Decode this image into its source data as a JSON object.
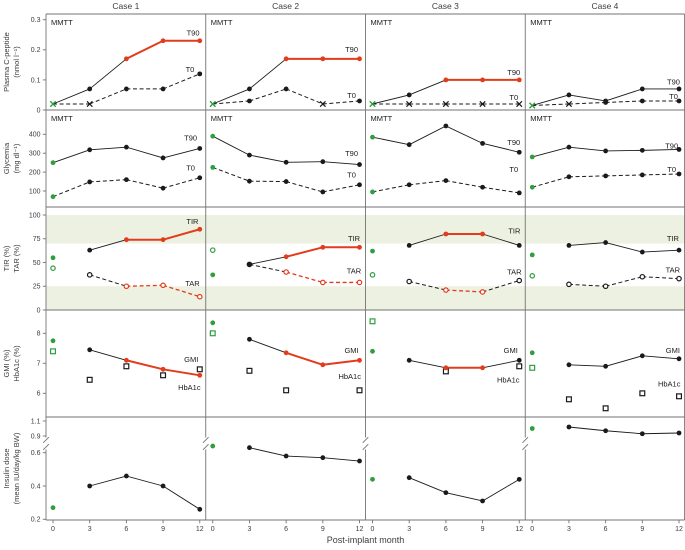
{
  "figure": {
    "column_titles": [
      "Case 1",
      "Case 2",
      "Case 3",
      "Case 4"
    ],
    "xlabel": "Post-implant month",
    "x_months": [
      0,
      3,
      6,
      9,
      12
    ],
    "x_tick_labels": [
      "0",
      "3",
      "6",
      "9",
      "12"
    ],
    "colors": {
      "red": "#e23c1c",
      "green": "#2f9e3e",
      "black": "#1a1a1a",
      "band": "#edf1e1",
      "border": "#737373",
      "text": "#3d3d3d"
    }
  },
  "chart_data": [
    {
      "type": "line",
      "key": "plasma-c-peptide",
      "ylabel": [
        "Plasma C-peptide",
        "(nmol l⁻¹)"
      ],
      "panel_label": "MMTT",
      "yticks": [
        [
          0,
          "0"
        ],
        [
          0.1,
          "0.1"
        ],
        [
          0.2,
          "0.2"
        ],
        [
          0.3,
          "0.3"
        ]
      ],
      "ylim": [
        0,
        0.319
      ],
      "connect_baseline": true,
      "panels": [
        {
          "series": [
            {
              "name": "T90",
              "marker": "circle",
              "dashed": false,
              "baseline_marker": "x",
              "values": [
                0.02,
                0.07,
                0.17,
                0.23,
                0.23
              ],
              "red_idx": [
                2,
                3,
                4
              ],
              "label_pos": [
                11.45,
                0.255
              ]
            },
            {
              "name": "T0",
              "marker": "circle",
              "dashed": true,
              "baseline_marker": "x",
              "values": [
                0.02,
                0.02,
                0.07,
                0.07,
                0.12
              ],
              "x_idx": [
                1
              ],
              "label_pos": [
                11.2,
                0.135
              ]
            }
          ]
        },
        {
          "series": [
            {
              "name": "T90",
              "marker": "circle",
              "dashed": false,
              "baseline_marker": "x",
              "values": [
                0.02,
                0.07,
                0.17,
                0.17,
                0.17
              ],
              "red_idx": [
                2,
                3,
                4
              ],
              "label_pos": [
                11.35,
                0.2
              ]
            },
            {
              "name": "T0",
              "marker": "circle",
              "dashed": true,
              "baseline_marker": "x",
              "values": [
                0.02,
                0.03,
                0.07,
                0.02,
                0.03
              ],
              "x_idx": [
                3
              ],
              "label_pos": [
                11.35,
                0.048
              ]
            }
          ]
        },
        {
          "series": [
            {
              "name": "T90",
              "marker": "circle",
              "dashed": false,
              "baseline_marker": "x",
              "values": [
                0.02,
                0.05,
                0.1,
                0.1,
                0.1
              ],
              "red_idx": [
                2,
                3,
                4
              ],
              "label_pos": [
                11.55,
                0.125
              ]
            },
            {
              "name": "T0",
              "marker": "circle",
              "dashed": true,
              "baseline_marker": "x",
              "values": [
                0.02,
                0.02,
                0.02,
                0.02,
                0.02
              ],
              "x_idx": [
                1,
                2,
                3,
                4
              ],
              "label_pos": [
                11.55,
                0.042
              ]
            }
          ]
        },
        {
          "series": [
            {
              "name": "T90",
              "marker": "circle",
              "dashed": false,
              "baseline_marker": "x",
              "values": [
                0.015,
                0.05,
                0.03,
                0.07,
                0.07
              ],
              "label_pos": [
                11.55,
                0.093
              ]
            },
            {
              "name": "T0",
              "marker": "circle",
              "dashed": true,
              "baseline_marker": "x",
              "values": [
                0.015,
                0.02,
                0.025,
                0.03,
                0.03
              ],
              "x_idx": [
                1
              ],
              "label_pos": [
                11.55,
                0.044
              ]
            }
          ]
        }
      ]
    },
    {
      "type": "line",
      "key": "glycemia",
      "ylabel": [
        "Glycemia",
        "(mg dl⁻¹)"
      ],
      "panel_label": "MMTT",
      "yticks": [
        [
          100,
          "100"
        ],
        [
          200,
          "200"
        ],
        [
          300,
          "300"
        ],
        [
          400,
          "400"
        ]
      ],
      "ylim": [
        15,
        529
      ],
      "connect_baseline": true,
      "panels": [
        {
          "series": [
            {
              "name": "T90",
              "marker": "circle",
              "dashed": false,
              "values": [
                250,
                318,
                332,
                275,
                325
              ],
              "label_pos": [
                11.25,
                379
              ]
            },
            {
              "name": "T0",
              "marker": "circle",
              "dashed": true,
              "values": [
                70,
                148,
                160,
                115,
                170
              ],
              "label_pos": [
                11.25,
                220
              ]
            }
          ]
        },
        {
          "series": [
            {
              "name": "T90",
              "marker": "circle",
              "dashed": false,
              "values": [
                390,
                290,
                252,
                255,
                240
              ],
              "label_pos": [
                11.35,
                299
              ]
            },
            {
              "name": "T0",
              "marker": "circle",
              "dashed": true,
              "values": [
                225,
                152,
                150,
                95,
                133
              ],
              "label_pos": [
                11.35,
                185
              ]
            }
          ]
        },
        {
          "series": [
            {
              "name": "T90",
              "marker": "circle",
              "dashed": false,
              "values": [
                385,
                345,
                444,
                352,
                305
              ],
              "label_pos": [
                11.55,
                356
              ]
            },
            {
              "name": "T0",
              "marker": "circle",
              "dashed": true,
              "values": [
                95,
                133,
                155,
                120,
                90
              ],
              "label_pos": [
                11.55,
                213
              ]
            }
          ]
        },
        {
          "series": [
            {
              "name": "T90",
              "marker": "circle",
              "dashed": false,
              "values": [
                280,
                332,
                312,
                315,
                320
              ],
              "label_pos": [
                11.4,
                338
              ]
            },
            {
              "name": "T0",
              "marker": "circle",
              "dashed": true,
              "values": [
                120,
                175,
                180,
                185,
                190
              ],
              "label_pos": [
                11.4,
                212
              ]
            }
          ]
        }
      ]
    },
    {
      "type": "line",
      "key": "tir-tar",
      "ylabel": [
        "TIR (%)",
        "TAR (%)"
      ],
      "panel_label": null,
      "yticks": [
        [
          0,
          "0"
        ],
        [
          25,
          "25"
        ],
        [
          50,
          "50"
        ],
        [
          75,
          "75"
        ],
        [
          100,
          "100"
        ]
      ],
      "ylim": [
        0,
        108
      ],
      "bands": [
        [
          70,
          100
        ],
        [
          0,
          25
        ]
      ],
      "connect_baseline": false,
      "panels": [
        {
          "series": [
            {
              "name": "TIR",
              "marker": "circle",
              "dashed": false,
              "values": [
                55,
                63,
                74,
                74,
                85
              ],
              "red_idx": [
                2,
                3,
                4
              ],
              "label_pos": [
                11.4,
                93
              ]
            },
            {
              "name": "TAR",
              "marker": "open-circle",
              "dashed": true,
              "values": [
                44,
                37,
                25,
                26,
                14
              ],
              "red_idx": [
                2,
                3,
                4
              ],
              "label_pos": [
                11.4,
                28
              ]
            }
          ]
        },
        {
          "series": [
            {
              "name": "TIR",
              "marker": "circle",
              "dashed": false,
              "values": [
                37,
                48,
                56,
                66,
                66
              ],
              "red_idx": [
                2,
                3,
                4
              ],
              "label_pos": [
                11.55,
                75
              ]
            },
            {
              "name": "TAR",
              "marker": "open-circle",
              "dashed": true,
              "values": [
                63,
                48,
                40,
                29,
                29
              ],
              "red_idx": [
                2,
                3,
                4
              ],
              "label_pos": [
                11.55,
                41
              ]
            }
          ]
        },
        {
          "series": [
            {
              "name": "TIR",
              "marker": "circle",
              "dashed": false,
              "values": [
                62,
                68,
                80,
                80,
                68
              ],
              "red_idx": [
                2,
                3
              ],
              "label_pos": [
                11.6,
                83
              ]
            },
            {
              "name": "TAR",
              "marker": "open-circle",
              "dashed": true,
              "values": [
                37,
                30,
                21,
                19,
                31
              ],
              "red_idx": [
                2,
                3
              ],
              "label_pos": [
                11.6,
                40
              ]
            }
          ]
        },
        {
          "series": [
            {
              "name": "TIR",
              "marker": "circle",
              "dashed": false,
              "values": [
                58,
                68,
                71,
                61,
                63
              ],
              "label_pos": [
                11.5,
                75
              ]
            },
            {
              "name": "TAR",
              "marker": "open-circle",
              "dashed": true,
              "values": [
                36,
                27,
                25,
                35,
                33
              ],
              "label_pos": [
                11.5,
                42
              ]
            }
          ]
        }
      ]
    },
    {
      "type": "line",
      "key": "gmi-hba1c",
      "ylabel": [
        "GMI (%)",
        "HbA1c (%)"
      ],
      "panel_label": null,
      "yticks": [
        [
          6,
          "6"
        ],
        [
          7,
          "7"
        ],
        [
          8,
          "8"
        ]
      ],
      "ylim": [
        5.2,
        8.8
      ],
      "connect_baseline": false,
      "panels": [
        {
          "series": [
            {
              "name": "GMI",
              "marker": "circle",
              "dashed": false,
              "values": [
                7.75,
                7.45,
                7.1,
                6.8,
                6.6
              ],
              "red_idx": [
                2,
                3,
                4
              ],
              "label_pos": [
                11.3,
                7.13
              ]
            },
            {
              "name": "HbA1c",
              "marker": "open-square",
              "no_line": true,
              "values": [
                7.4,
                6.45,
                6.9,
                6.6,
                6.8
              ],
              "label_pos": [
                11.15,
                6.19
              ]
            }
          ]
        },
        {
          "series": [
            {
              "name": "GMI",
              "marker": "circle",
              "dashed": false,
              "values": [
                8.35,
                7.8,
                7.35,
                6.95,
                7.1
              ],
              "red_idx": [
                2,
                3,
                4
              ],
              "label_pos": [
                11.35,
                7.42
              ]
            },
            {
              "name": "HbA1c",
              "marker": "open-square",
              "no_line": true,
              "values": [
                8.0,
                6.75,
                6.1,
                null,
                6.1
              ],
              "label_pos": [
                11.2,
                6.55
              ]
            }
          ]
        },
        {
          "series": [
            {
              "name": "GMI",
              "marker": "circle",
              "dashed": false,
              "values": [
                7.4,
                7.1,
                6.85,
                6.85,
                7.1
              ],
              "red_idx": [
                2,
                3
              ],
              "label_pos": [
                11.3,
                7.42
              ]
            },
            {
              "name": "HbA1c",
              "marker": "open-square",
              "no_line": true,
              "values": [
                8.4,
                null,
                6.73,
                null,
                6.9
              ],
              "label_pos": [
                11.1,
                6.44
              ]
            }
          ]
        },
        {
          "series": [
            {
              "name": "GMI",
              "marker": "circle",
              "dashed": false,
              "values": [
                7.35,
                6.95,
                6.9,
                7.25,
                7.15
              ],
              "label_pos": [
                11.5,
                7.42
              ]
            },
            {
              "name": "HbA1c",
              "marker": "open-square",
              "no_line": true,
              "values": [
                6.85,
                5.8,
                5.5,
                6.0,
                5.9
              ],
              "label_pos": [
                11.2,
                6.31
              ]
            }
          ]
        }
      ]
    },
    {
      "type": "line",
      "key": "insulin-dose",
      "ylabel": [
        "Insulin dose",
        "(mean IU/day/kg BW)"
      ],
      "panel_label": null,
      "yticks": [
        [
          0.2,
          "0.2"
        ],
        [
          0.4,
          "0.4"
        ],
        [
          0.6,
          "0.6"
        ],
        [
          0.9,
          "0.9"
        ],
        [
          1.1,
          "1.1"
        ]
      ],
      "ylim": [
        0.13,
        1.15
      ],
      "y_break": [
        0.68,
        0.88
      ],
      "connect_baseline": false,
      "panels": [
        {
          "series": [
            {
              "name": "Insulin dose",
              "marker": "circle",
              "dashed": false,
              "values": [
                0.27,
                0.4,
                0.46,
                0.4,
                0.26
              ]
            }
          ]
        },
        {
          "series": [
            {
              "name": "Insulin dose",
              "marker": "circle",
              "dashed": false,
              "values": [
                0.64,
                0.63,
                0.58,
                0.57,
                0.55
              ]
            }
          ]
        },
        {
          "series": [
            {
              "name": "Insulin dose",
              "marker": "circle",
              "dashed": false,
              "values": [
                0.44,
                0.45,
                0.36,
                0.31,
                0.44
              ]
            }
          ]
        },
        {
          "series": [
            {
              "name": "Insulin dose",
              "marker": "circle",
              "dashed": false,
              "values": [
                1.0,
                1.02,
                0.97,
                0.93,
                0.94
              ]
            }
          ]
        }
      ]
    }
  ]
}
